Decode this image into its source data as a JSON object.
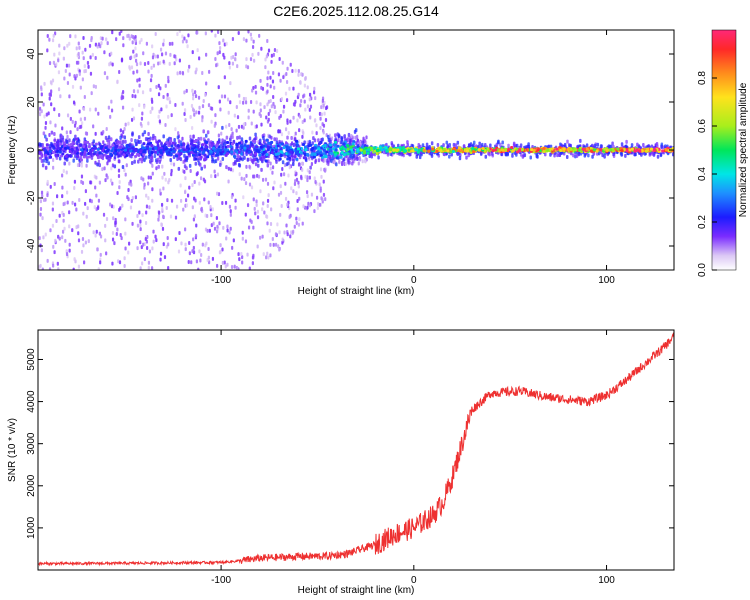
{
  "title": "C2E6.2025.112.08.25.G14",
  "chart_data": [
    {
      "type": "heatmap",
      "title": "C2E6.2025.112.08.25.G14",
      "xlabel": "Height of straight line (km)",
      "ylabel": "Frequency (Hz)",
      "xlim": [
        -195,
        135
      ],
      "ylim": [
        -50,
        50
      ],
      "xticks": [
        -100,
        0,
        100
      ],
      "xtick_labels": [
        "-100",
        "0",
        "100"
      ],
      "yticks": [
        -40,
        -20,
        0,
        20,
        40
      ],
      "ytick_labels": [
        "-40",
        "-20",
        "0",
        "20",
        "40"
      ],
      "colorbar": {
        "label": "Normalized spectral amplitude",
        "range": [
          0,
          1
        ],
        "ticks": [
          0.0,
          0.2,
          0.4,
          0.6,
          0.8
        ],
        "tick_labels": [
          "0.0",
          "0.2",
          "0.4",
          "0.6",
          "0.8"
        ]
      },
      "description_series": {
        "ridge_center_hz": 0,
        "ridge_amplitude_by_height": [
          {
            "x": -195,
            "amp": 0.25
          },
          {
            "x": -100,
            "amp": 0.3
          },
          {
            "x": -50,
            "amp": 0.4
          },
          {
            "x": -20,
            "amp": 0.6
          },
          {
            "x": 0,
            "amp": 0.75
          },
          {
            "x": 50,
            "amp": 0.9
          },
          {
            "x": 100,
            "amp": 0.95
          },
          {
            "x": 135,
            "amp": 1.0
          }
        ]
      }
    },
    {
      "type": "line",
      "xlabel": "Height of straight line (km)",
      "ylabel": "SNR (10 * v/v)",
      "xlim": [
        -195,
        135
      ],
      "ylim": [
        0,
        5700
      ],
      "xticks": [
        -100,
        0,
        100
      ],
      "xtick_labels": [
        "-100",
        "0",
        "100"
      ],
      "yticks": [
        1000,
        2000,
        3000,
        4000,
        5000
      ],
      "ytick_labels": [
        "1000",
        "2000",
        "3000",
        "4000",
        "5000"
      ],
      "series": [
        {
          "name": "SNR",
          "color": "#ee3030",
          "x": [
            -195,
            -150,
            -100,
            -90,
            -80,
            -60,
            -45,
            -35,
            -20,
            -10,
            0,
            10,
            15,
            20,
            25,
            30,
            40,
            55,
            70,
            90,
            100,
            110,
            120,
            130,
            135
          ],
          "y": [
            150,
            160,
            180,
            220,
            280,
            320,
            330,
            380,
            600,
            850,
            1000,
            1300,
            1600,
            2200,
            3000,
            3800,
            4200,
            4250,
            4100,
            4000,
            4150,
            4500,
            4900,
            5300,
            5550
          ]
        }
      ]
    }
  ]
}
